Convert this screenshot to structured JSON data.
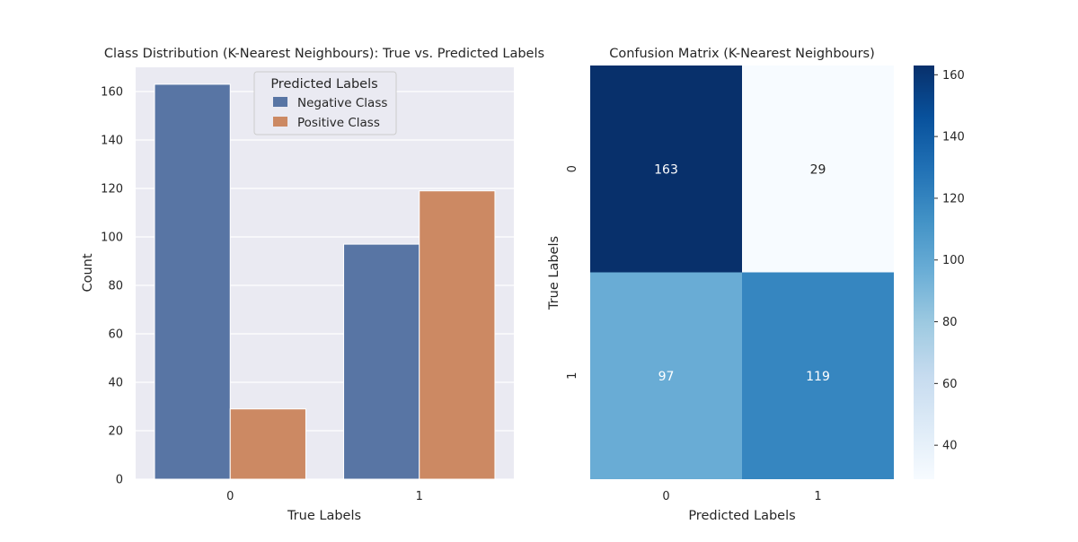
{
  "chart_data": [
    {
      "type": "bar",
      "title": "Class Distribution (K-Nearest Neighbours): True vs. Predicted Labels",
      "xlabel": "True Labels",
      "ylabel": "Count",
      "categories": [
        "0",
        "1"
      ],
      "series": [
        {
          "name": "Negative Class",
          "values": [
            163,
            97
          ],
          "color": "#5875a4"
        },
        {
          "name": "Positive Class",
          "values": [
            29,
            119
          ],
          "color": "#cc8963"
        }
      ],
      "ylim": [
        0,
        170
      ],
      "yticks": [
        0,
        20,
        40,
        60,
        80,
        100,
        120,
        140,
        160
      ],
      "grid": true,
      "legend": {
        "title": "Predicted Labels",
        "placement": "top-center"
      },
      "background": "#eaeaf2"
    },
    {
      "type": "heatmap",
      "title": "Confusion Matrix (K-Nearest Neighbours)",
      "xlabel": "Predicted Labels",
      "ylabel": "True Labels",
      "x_categories": [
        "0",
        "1"
      ],
      "y_categories": [
        "0",
        "1"
      ],
      "values": [
        [
          163,
          29
        ],
        [
          97,
          119
        ]
      ],
      "colormap": "Blues",
      "colorbar": {
        "range": [
          29,
          163
        ],
        "ticks": [
          40,
          60,
          80,
          100,
          120,
          140,
          160
        ]
      }
    }
  ]
}
